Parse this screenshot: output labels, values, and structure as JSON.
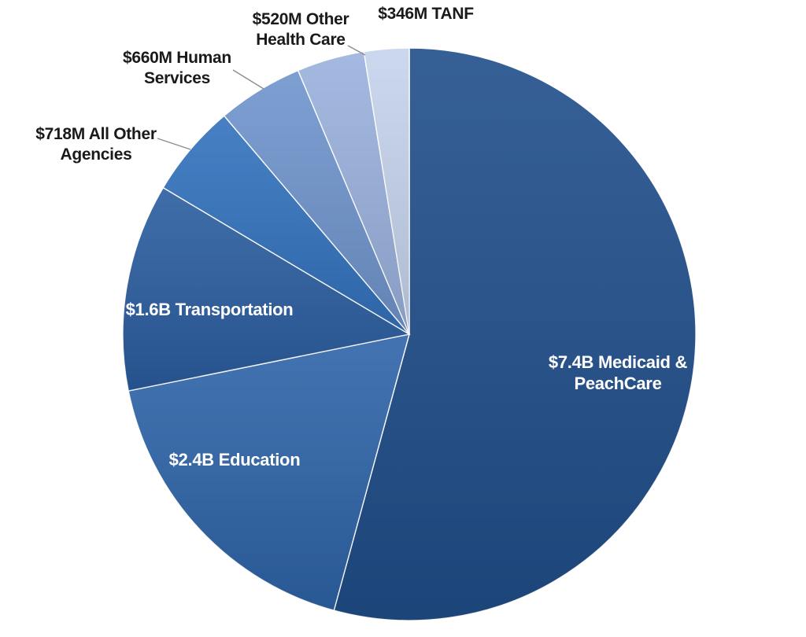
{
  "chart_data": {
    "type": "pie",
    "title": "",
    "units": "$M",
    "categories": [
      "Medicaid & PeachCare",
      "Education",
      "Transportation",
      "All Other Agencies",
      "Human Services",
      "Other Health Care",
      "TANF"
    ],
    "values": [
      7400,
      2400,
      1600,
      718,
      660,
      520,
      346
    ],
    "slices": [
      {
        "label": [
          "$7.4B Medicaid &",
          "PeachCare"
        ],
        "value": 7400,
        "color": "#1f4e8a"
      },
      {
        "label": [
          "$2.4B Education"
        ],
        "value": 2400,
        "color": "#2e64a8"
      },
      {
        "label": [
          "$1.6B Transportation"
        ],
        "value": 1600,
        "color": "#2a5d9f"
      },
      {
        "label": [
          "$718M All Other",
          "Agencies"
        ],
        "value": 718,
        "color": "#3272bd"
      },
      {
        "label": [
          "$660M Human",
          "Services"
        ],
        "value": 660,
        "color": "#6f94cc"
      },
      {
        "label": [
          "$520M Other",
          "Health Care"
        ],
        "value": 520,
        "color": "#9ab1dd"
      },
      {
        "label": [
          "$346M TANF"
        ],
        "value": 346,
        "color": "#c5d3ec"
      }
    ],
    "legend": "none"
  }
}
